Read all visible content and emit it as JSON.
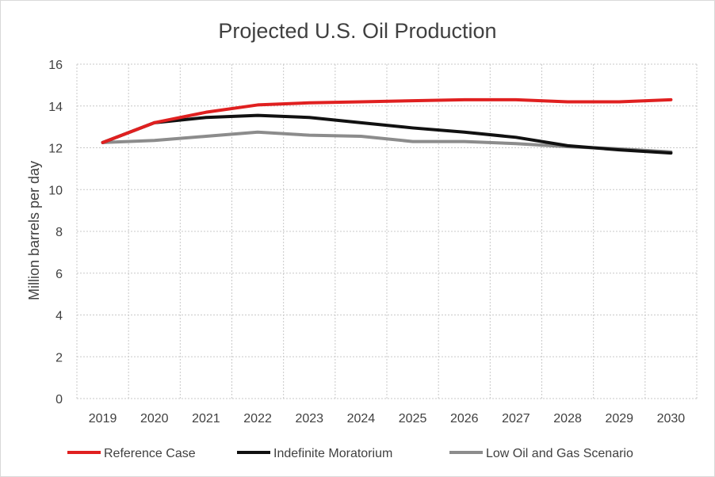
{
  "chart_data": {
    "type": "line",
    "title": "Projected U.S. Oil Production",
    "xlabel": "",
    "ylabel": "Million barrels per day",
    "x": [
      "2019",
      "2020",
      "2021",
      "2022",
      "2023",
      "2024",
      "2025",
      "2026",
      "2027",
      "2028",
      "2029",
      "2030"
    ],
    "ylim": [
      0,
      16
    ],
    "yticks": [
      0,
      2,
      4,
      6,
      8,
      10,
      12,
      14,
      16
    ],
    "grid": true,
    "legend_position": "bottom",
    "series": [
      {
        "name": "Reference Case",
        "color": "#e02020",
        "values": [
          12.25,
          13.2,
          13.7,
          14.05,
          14.15,
          14.2,
          14.25,
          14.3,
          14.3,
          14.2,
          14.2,
          14.3
        ]
      },
      {
        "name": "Indefinite Moratorium",
        "color": "#111111",
        "values": [
          12.25,
          13.2,
          13.45,
          13.55,
          13.45,
          13.2,
          12.95,
          12.75,
          12.5,
          12.1,
          11.9,
          11.75
        ]
      },
      {
        "name": "Low Oil and Gas Scenario",
        "color": "#8c8c8c",
        "values": [
          12.25,
          12.35,
          12.55,
          12.75,
          12.6,
          12.55,
          12.3,
          12.3,
          12.2,
          12.05,
          11.95,
          11.8
        ]
      }
    ]
  }
}
